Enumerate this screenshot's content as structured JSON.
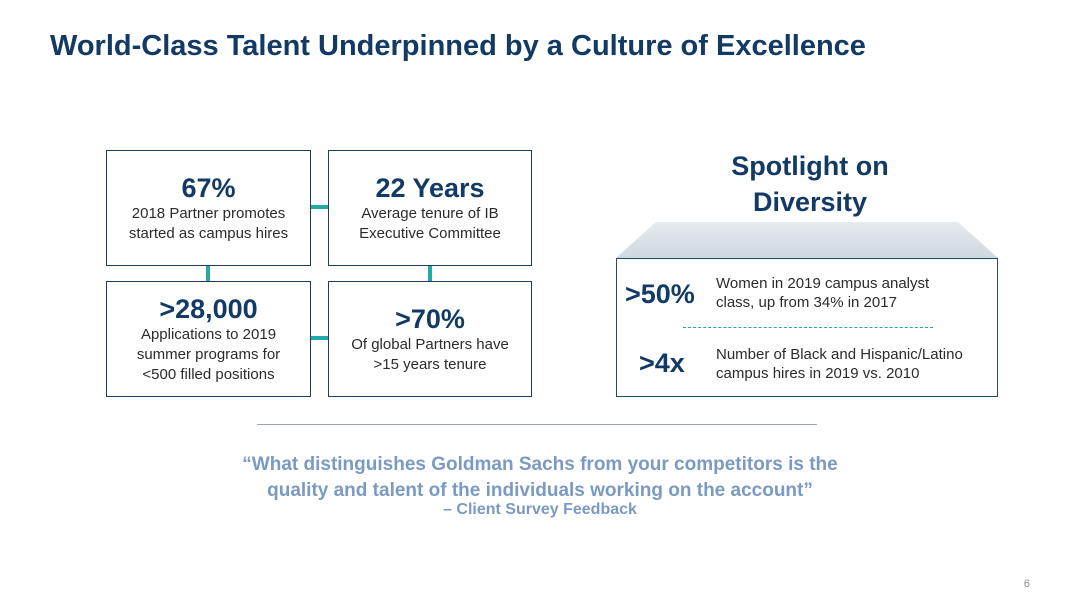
{
  "title": "World-Class Talent Underpinned by a Culture of Excellence",
  "stats": [
    {
      "value": "67%",
      "lines": [
        "2018 Partner promotes",
        "started as campus hires"
      ]
    },
    {
      "value": "22 Years",
      "lines": [
        "Average tenure of IB",
        "Executive Committee"
      ]
    },
    {
      "value": ">28,000",
      "lines": [
        "Applications to 2019",
        "summer programs for",
        "<500 filled positions"
      ]
    },
    {
      "value": ">70%",
      "lines": [
        "Of global Partners have",
        ">15 years tenure"
      ]
    }
  ],
  "spotlight": {
    "title_lines": [
      "Spotlight on",
      "Diversity"
    ],
    "items": [
      {
        "value": ">50%",
        "lines": [
          "Women in 2019 campus analyst",
          "class, up from 34% in 2017"
        ]
      },
      {
        "value": ">4x",
        "lines": [
          "Number of Black and Hispanic/Latino",
          "campus hires in 2019 vs. 2010"
        ]
      }
    ]
  },
  "quote": {
    "lines": [
      "“What distinguishes Goldman Sachs from your competitors is the",
      "quality and talent of the individuals working on the account”"
    ],
    "source": "– Client Survey Feedback"
  },
  "page_number": "6",
  "colors": {
    "title": "#123a64",
    "connector": "#22a9a8",
    "quote": "#7b9ac1",
    "banner": "#dde4ea"
  }
}
